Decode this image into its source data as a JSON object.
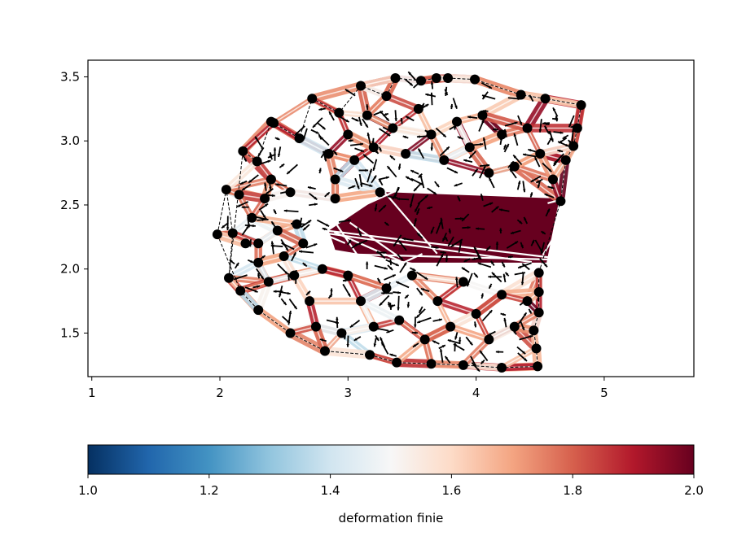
{
  "chart_data": {
    "type": "scatter",
    "title": "",
    "xlabel": "",
    "ylabel": "",
    "xlim": [
      0.97,
      5.7
    ],
    "ylim": [
      1.16,
      3.63
    ],
    "grid": false,
    "x_ticks": [
      1,
      2,
      3,
      4,
      5
    ],
    "x_tick_labels": [
      "1",
      "2",
      "3",
      "4",
      "5"
    ],
    "y_ticks": [
      1.5,
      2.0,
      2.5,
      3.0,
      3.5
    ],
    "y_tick_labels": [
      "1.5",
      "2.0",
      "2.5",
      "3.0",
      "3.5"
    ],
    "colorbar": {
      "label": "deformation finie",
      "colormap": "RdBu_r",
      "min": 1.0,
      "max": 2.0,
      "ticks": [
        1.0,
        1.2,
        1.4,
        1.6,
        1.8,
        2.0
      ],
      "tick_labels": [
        "1.0",
        "1.2",
        "1.4",
        "1.6",
        "1.8",
        "2.0"
      ],
      "orientation": "horizontal",
      "stops": [
        "#053061",
        "#2166ac",
        "#4393c3",
        "#92c5de",
        "#d1e5f0",
        "#f7f7f7",
        "#fddbc7",
        "#f4a582",
        "#d6604d",
        "#b2182b",
        "#67001f"
      ]
    },
    "boundary_points": [
      [
        1.98,
        2.27
      ],
      [
        2.05,
        2.62
      ],
      [
        2.1,
        2.28
      ],
      [
        2.07,
        1.93
      ],
      [
        2.18,
        2.92
      ],
      [
        2.29,
        2.84
      ],
      [
        2.4,
        3.15
      ],
      [
        2.42,
        3.14
      ],
      [
        2.62,
        3.02
      ],
      [
        2.72,
        3.33
      ],
      [
        2.93,
        3.22
      ],
      [
        3.1,
        3.43
      ],
      [
        3.3,
        3.35
      ],
      [
        3.37,
        3.49
      ],
      [
        3.57,
        3.47
      ],
      [
        3.69,
        3.49
      ],
      [
        3.78,
        3.49
      ],
      [
        3.99,
        3.48
      ],
      [
        4.35,
        3.36
      ],
      [
        4.54,
        3.33
      ],
      [
        4.82,
        3.28
      ],
      [
        4.79,
        3.1
      ],
      [
        4.76,
        2.96
      ],
      [
        4.7,
        2.85
      ],
      [
        4.66,
        2.53
      ],
      [
        4.49,
        1.97
      ],
      [
        4.49,
        1.82
      ],
      [
        4.49,
        1.66
      ],
      [
        4.45,
        1.52
      ],
      [
        4.47,
        1.38
      ],
      [
        4.48,
        1.24
      ],
      [
        4.2,
        1.23
      ],
      [
        3.9,
        1.25
      ],
      [
        3.65,
        1.26
      ],
      [
        3.38,
        1.27
      ],
      [
        3.17,
        1.33
      ],
      [
        2.82,
        1.36
      ],
      [
        2.55,
        1.5
      ],
      [
        2.3,
        1.68
      ],
      [
        2.16,
        1.83
      ]
    ],
    "interior_points": [
      [
        2.2,
        2.2
      ],
      [
        2.25,
        2.4
      ],
      [
        2.3,
        2.05
      ],
      [
        2.38,
        1.9
      ],
      [
        2.45,
        2.3
      ],
      [
        2.5,
        2.1
      ],
      [
        2.55,
        2.6
      ],
      [
        2.6,
        2.35
      ],
      [
        2.65,
        2.2
      ],
      [
        2.58,
        1.95
      ],
      [
        2.7,
        1.75
      ],
      [
        2.8,
        2.0
      ],
      [
        2.85,
        2.9
      ],
      [
        2.9,
        2.7
      ],
      [
        3.0,
        3.05
      ],
      [
        3.05,
        2.85
      ],
      [
        3.15,
        3.2
      ],
      [
        3.2,
        2.95
      ],
      [
        3.35,
        3.1
      ],
      [
        3.45,
        2.9
      ],
      [
        3.55,
        3.25
      ],
      [
        3.65,
        3.05
      ],
      [
        3.75,
        2.85
      ],
      [
        3.85,
        3.15
      ],
      [
        3.95,
        2.95
      ],
      [
        4.05,
        3.2
      ],
      [
        4.1,
        2.75
      ],
      [
        4.2,
        3.05
      ],
      [
        4.3,
        2.8
      ],
      [
        4.4,
        3.1
      ],
      [
        4.5,
        2.9
      ],
      [
        4.6,
        2.7
      ],
      [
        3.0,
        1.95
      ],
      [
        3.1,
        1.75
      ],
      [
        3.2,
        1.55
      ],
      [
        3.3,
        1.85
      ],
      [
        3.4,
        1.6
      ],
      [
        3.5,
        1.95
      ],
      [
        3.6,
        1.45
      ],
      [
        3.7,
        1.75
      ],
      [
        3.8,
        1.55
      ],
      [
        3.9,
        1.9
      ],
      [
        4.0,
        1.65
      ],
      [
        4.1,
        1.45
      ],
      [
        4.2,
        1.8
      ],
      [
        4.3,
        1.55
      ],
      [
        4.4,
        1.75
      ],
      [
        2.95,
        1.5
      ],
      [
        2.75,
        1.55
      ],
      [
        3.25,
        2.6
      ],
      [
        2.4,
        2.7
      ],
      [
        2.35,
        2.55
      ],
      [
        2.15,
        2.58
      ],
      [
        2.3,
        2.2
      ],
      [
        2.9,
        2.55
      ]
    ],
    "high_strain_region": {
      "value": 2.0,
      "polygon": [
        [
          2.85,
          2.3
        ],
        [
          3.3,
          2.6
        ],
        [
          4.65,
          2.55
        ],
        [
          4.55,
          2.05
        ],
        [
          3.5,
          2.05
        ],
        [
          2.9,
          2.15
        ]
      ]
    }
  }
}
